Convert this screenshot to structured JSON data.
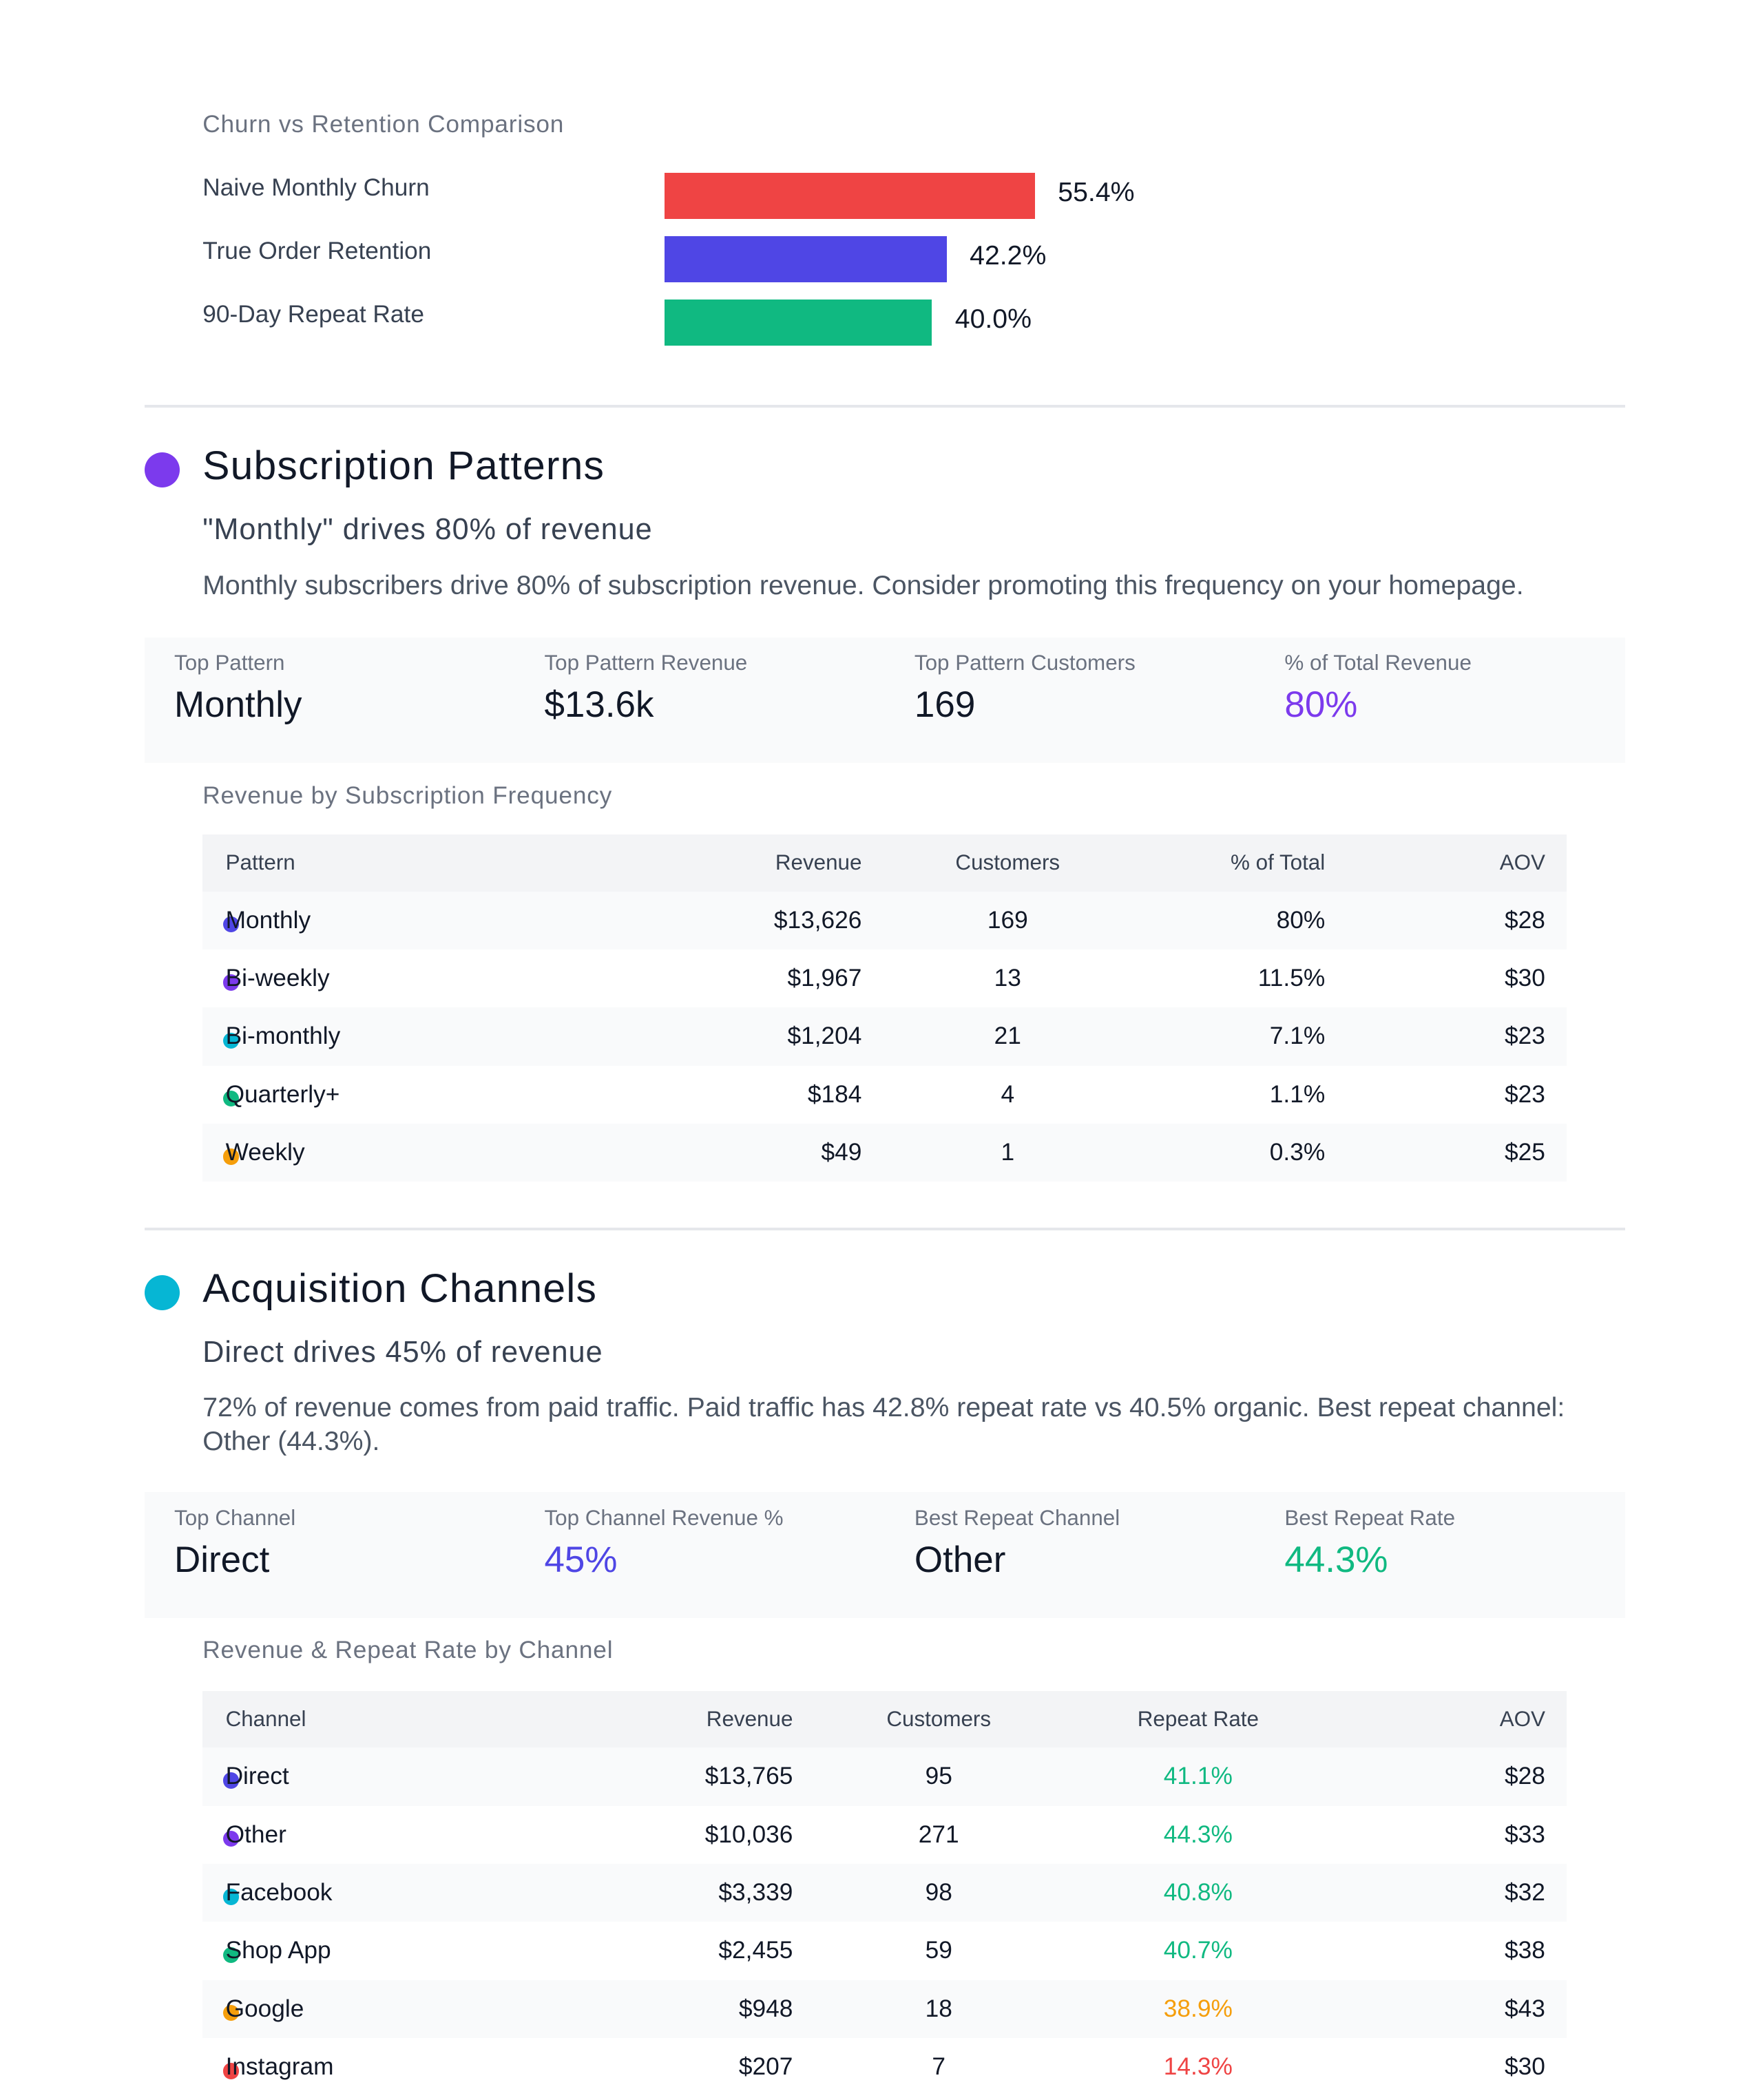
{
  "colors": {
    "red": "#ef4444",
    "indigo": "#4f46e5",
    "purple": "#7c3aed",
    "cyan": "#06b6d4",
    "green": "#10b981",
    "amber": "#f59e0b"
  },
  "chart_data": {
    "type": "bar",
    "title": "Churn vs Retention Comparison",
    "categories": [
      "Naive Monthly Churn",
      "True Order Retention",
      "90-Day Repeat Rate"
    ],
    "values": [
      55.4,
      42.2,
      40.0
    ],
    "labels": [
      "55.4%",
      "42.2%",
      "40.0%"
    ],
    "colors": [
      "#ef4444",
      "#4f46e5",
      "#10b981"
    ],
    "xlim": [
      0,
      100
    ],
    "orientation": "horizontal"
  },
  "subscription": {
    "title": "Subscription Patterns",
    "subtitle": "\"Monthly\" drives 80% of revenue",
    "description": "Monthly subscribers drive 80% of subscription revenue. Consider promoting this frequency on your homepage.",
    "kpis": [
      {
        "label": "Top Pattern",
        "value": "Monthly"
      },
      {
        "label": "Top Pattern Revenue",
        "value": "$13.6k"
      },
      {
        "label": "Top Pattern Customers",
        "value": "169"
      },
      {
        "label": "% of Total Revenue",
        "value": "80%",
        "color": "#7c3aed"
      }
    ],
    "table_title": "Revenue by Subscription Frequency",
    "columns": [
      "Pattern",
      "Revenue",
      "Customers",
      "% of Total",
      "AOV"
    ],
    "rows": [
      {
        "name": "Monthly",
        "revenue": "$13,626",
        "customers": "169",
        "pct": "80%",
        "aov": "$28",
        "dot": "#4f46e5"
      },
      {
        "name": "Bi-weekly",
        "revenue": "$1,967",
        "customers": "13",
        "pct": "11.5%",
        "aov": "$30",
        "dot": "#7c3aed"
      },
      {
        "name": "Bi-monthly",
        "revenue": "$1,204",
        "customers": "21",
        "pct": "7.1%",
        "aov": "$23",
        "dot": "#06b6d4"
      },
      {
        "name": "Quarterly+",
        "revenue": "$184",
        "customers": "4",
        "pct": "1.1%",
        "aov": "$23",
        "dot": "#10b981"
      },
      {
        "name": "Weekly",
        "revenue": "$49",
        "customers": "1",
        "pct": "0.3%",
        "aov": "$25",
        "dot": "#f59e0b"
      }
    ]
  },
  "acquisition": {
    "title": "Acquisition Channels",
    "subtitle": "Direct drives 45% of revenue",
    "description": "72% of revenue comes from paid traffic. Paid traffic has 42.8% repeat rate vs 40.5% organic. Best repeat channel: Other (44.3%).",
    "kpis": [
      {
        "label": "Top Channel",
        "value": "Direct"
      },
      {
        "label": "Top Channel Revenue %",
        "value": "45%",
        "color": "#4f46e5"
      },
      {
        "label": "Best Repeat Channel",
        "value": "Other"
      },
      {
        "label": "Best Repeat Rate",
        "value": "44.3%",
        "color": "#10b981"
      }
    ],
    "table_title": "Revenue & Repeat Rate by Channel",
    "columns": [
      "Channel",
      "Revenue",
      "Customers",
      "Repeat Rate",
      "AOV"
    ],
    "rows": [
      {
        "name": "Direct",
        "revenue": "$13,765",
        "customers": "95",
        "repeat": "41.1%",
        "aov": "$28",
        "dot": "#4f46e5",
        "repeat_color": "#10b981"
      },
      {
        "name": "Other",
        "revenue": "$10,036",
        "customers": "271",
        "repeat": "44.3%",
        "aov": "$33",
        "dot": "#7c3aed",
        "repeat_color": "#10b981"
      },
      {
        "name": "Facebook",
        "revenue": "$3,339",
        "customers": "98",
        "repeat": "40.8%",
        "aov": "$32",
        "dot": "#06b6d4",
        "repeat_color": "#10b981"
      },
      {
        "name": "Shop App",
        "revenue": "$2,455",
        "customers": "59",
        "repeat": "40.7%",
        "aov": "$38",
        "dot": "#10b981",
        "repeat_color": "#10b981"
      },
      {
        "name": "Google",
        "revenue": "$948",
        "customers": "18",
        "repeat": "38.9%",
        "aov": "$43",
        "dot": "#f59e0b",
        "repeat_color": "#f59e0b"
      },
      {
        "name": "Instagram",
        "revenue": "$207",
        "customers": "7",
        "repeat": "14.3%",
        "aov": "$30",
        "dot": "#ef4444",
        "repeat_color": "#ef4444"
      }
    ]
  }
}
